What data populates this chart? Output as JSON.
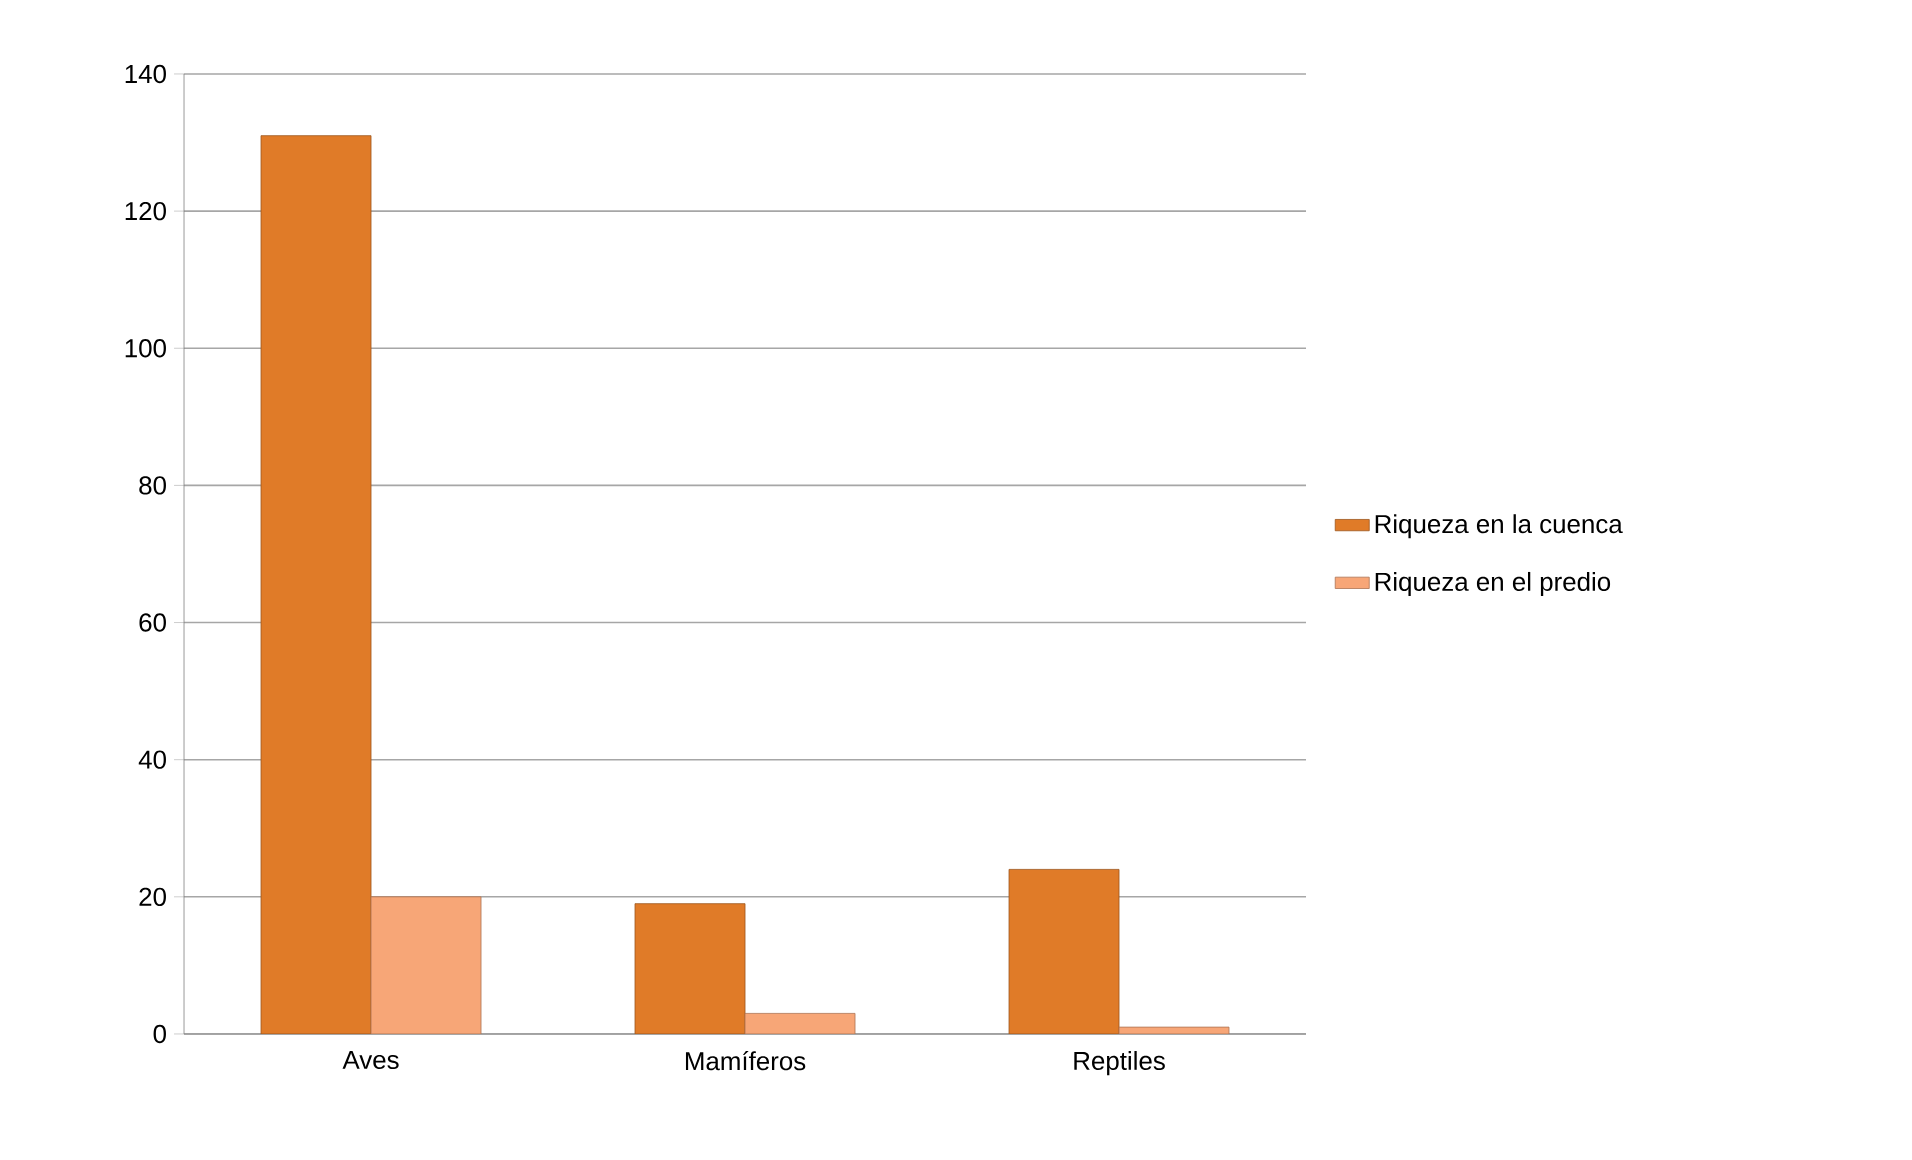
{
  "chart_data": {
    "type": "bar",
    "categories": [
      "Aves",
      "Mamíferos",
      "Reptiles"
    ],
    "series": [
      {
        "name": "Riqueza en la cuenca",
        "color": "#e07b28",
        "values": [
          131,
          19,
          24
        ]
      },
      {
        "name": "Riqueza en el predio",
        "color": "#f7a677",
        "values": [
          20,
          3,
          1
        ]
      }
    ],
    "ylim": [
      0,
      140
    ],
    "yticks": [
      0,
      20,
      40,
      60,
      80,
      100,
      120,
      140
    ],
    "grid": "y",
    "legend": "right"
  }
}
